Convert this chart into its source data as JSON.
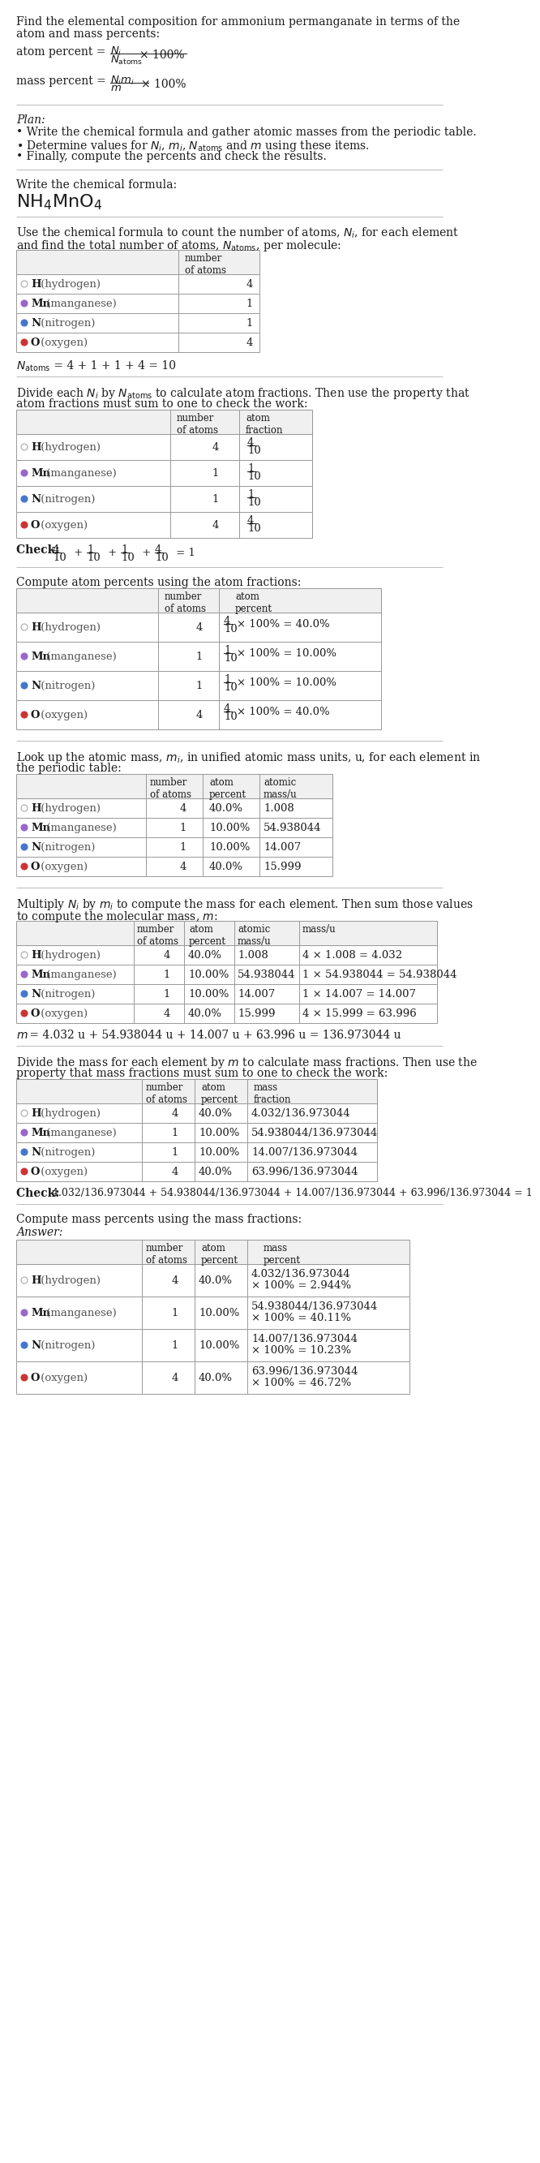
{
  "title_line1": "Find the elemental composition for ammonium permanganate in terms of the",
  "title_line2": "atom and mass percents:",
  "plan_header": "Plan:",
  "plan_items": [
    "Write the chemical formula and gather atomic masses from the periodic table.",
    "Determine values for $N_i$, $m_i$, $N_\\mathrm{atoms}$ and $m$ using these items.",
    "Finally, compute the percents and check the results."
  ],
  "formula_label": "Write the chemical formula:",
  "formula": "NH$_4$MnO$_4$",
  "elem_keys": [
    "H",
    "Mn",
    "N",
    "O"
  ],
  "elem_names": [
    "hydrogen",
    "manganese",
    "nitrogen",
    "oxygen"
  ],
  "elem_counts": [
    4,
    1,
    1,
    4
  ],
  "elem_dot_colors": [
    "none",
    "#9966cc",
    "#4477cc",
    "#cc3333"
  ],
  "elem_dot_edge_colors": [
    "#aaaaaa",
    "#9966cc",
    "#4477cc",
    "#cc3333"
  ],
  "atom_fractions": [
    "4/10",
    "1/10",
    "1/10",
    "4/10"
  ],
  "atom_fractions_num": [
    "4",
    "1",
    "1",
    "4"
  ],
  "atom_fractions_den": [
    "10",
    "10",
    "10",
    "10"
  ],
  "atom_pct_vals": [
    "40.0%",
    "10.00%",
    "10.00%",
    "40.0%"
  ],
  "atomic_masses": [
    "1.008",
    "54.938044",
    "14.007",
    "15.999"
  ],
  "mass_vals_expr": [
    "4 × 1.008 = 4.032",
    "1 × 54.938044 = 54.938044",
    "1 × 14.007 = 14.007",
    "4 × 15.999 = 63.996"
  ],
  "mass_fractions_num": [
    "4.032",
    "54.938044",
    "14.007",
    "63.996"
  ],
  "mass_fractions_den": "136.973044",
  "mass_pct_expr": [
    "4.032/136.973044\n× 100% = 2.944%",
    "54.938044/136.973044\n× 100% = 40.11%",
    "14.007/136.973044\n× 100% = 10.23%",
    "63.996/136.973044\n× 100% = 46.72%"
  ],
  "bg_color": "#ffffff",
  "text_color": "#1a1a1a",
  "gray_color": "#555555",
  "divider_color": "#bbbbbb",
  "table_border_color": "#999999",
  "table_header_bg": "#f5f5f5",
  "fs_body": 9.5,
  "fs_small": 8.5,
  "fs_formula": 14
}
